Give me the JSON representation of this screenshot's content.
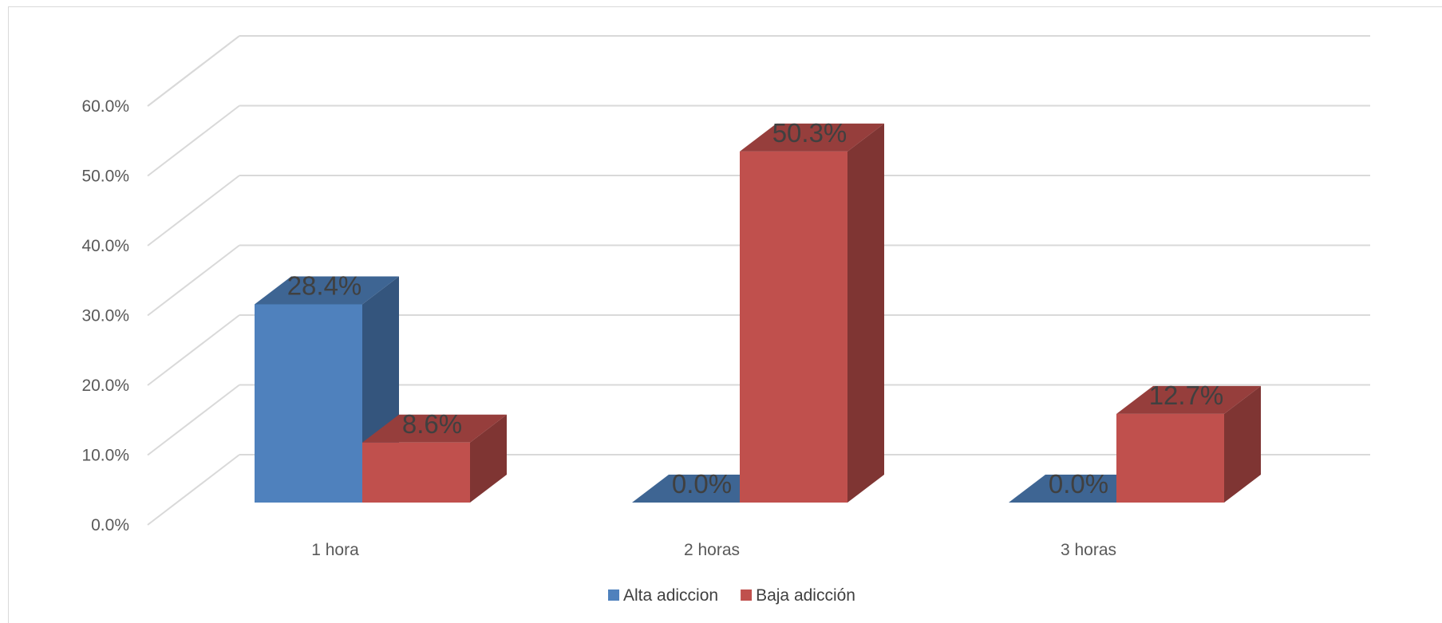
{
  "chart_data": {
    "type": "bar",
    "style": "3d-clustered-column",
    "categories": [
      "1 hora",
      "2 horas",
      "3 horas"
    ],
    "series": [
      {
        "name": "Alta adiccion",
        "values": [
          28.4,
          0.0,
          0.0
        ],
        "color": "#4f81bd"
      },
      {
        "name": "Baja adicción",
        "values": [
          8.6,
          50.3,
          12.7
        ],
        "color": "#c0504d"
      }
    ],
    "data_labels": [
      [
        "28.4%",
        "0.0%",
        "0.0%"
      ],
      [
        "8.6%",
        "50.3%",
        "12.7%"
      ]
    ],
    "yticks": [
      "0.0%",
      "10.0%",
      "20.0%",
      "30.0%",
      "40.0%",
      "50.0%",
      "60.0%"
    ],
    "ylim": [
      0,
      60
    ],
    "grid": true,
    "legend": "bottom",
    "title": "",
    "xlabel": "",
    "ylabel": ""
  }
}
